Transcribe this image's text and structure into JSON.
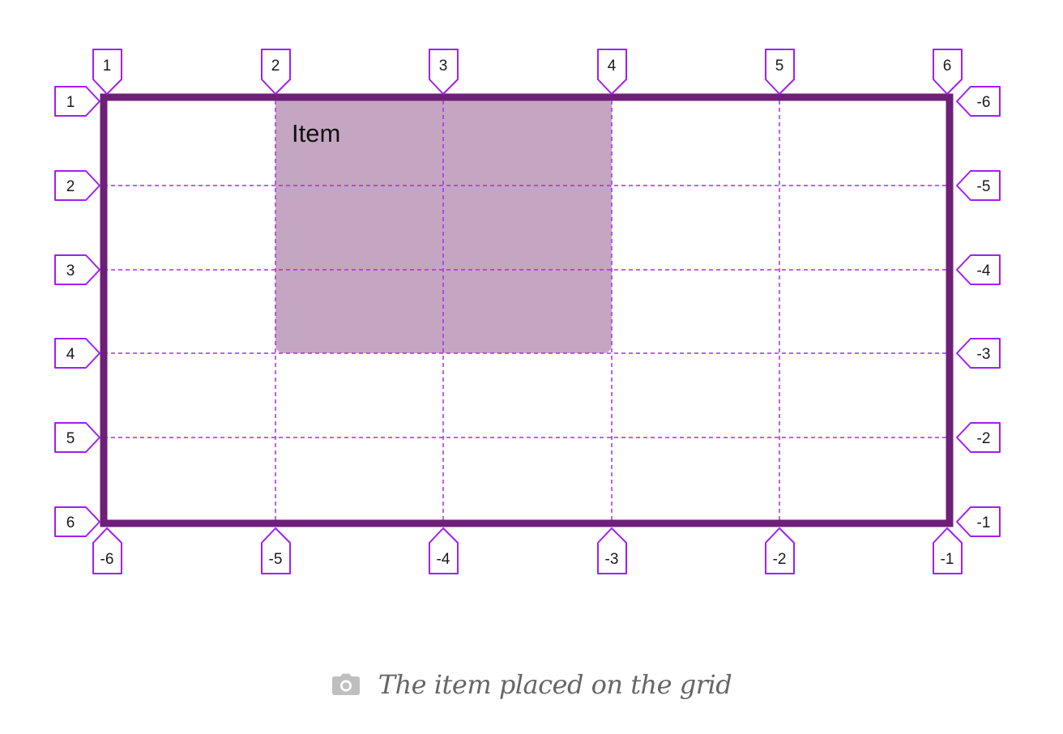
{
  "item": {
    "label": "Item"
  },
  "lines": {
    "top": [
      "1",
      "2",
      "3",
      "4",
      "5",
      "6"
    ],
    "bottom": [
      "-6",
      "-5",
      "-4",
      "-3",
      "-2",
      "-1"
    ],
    "left": [
      "1",
      "2",
      "3",
      "4",
      "5",
      "6"
    ],
    "right": [
      "-6",
      "-5",
      "-4",
      "-3",
      "-2",
      "-1"
    ]
  },
  "caption": {
    "text": "The item placed on the grid",
    "icon": "camera-icon"
  },
  "colors": {
    "grid_border": "#6e1f78",
    "grid_lines": "#a52ff0",
    "badge_stroke": "#a020f0",
    "item_fill": "#c5a6c2",
    "caption_text": "#666666",
    "icon": "#bfbfbf"
  }
}
